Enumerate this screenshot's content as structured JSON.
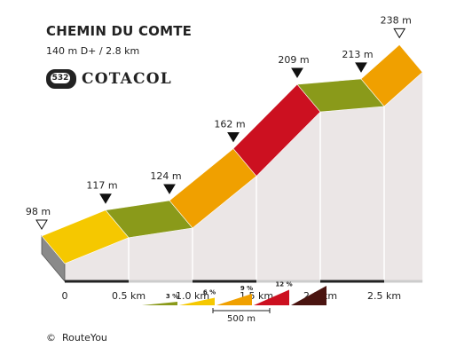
{
  "header": {
    "title": "CHEMIN DU COMTE",
    "subtitle": "140 m D+ / 2.8 km",
    "badge_number": "532",
    "brand": "COTACOL"
  },
  "footer": {
    "copyright_symbol": "©",
    "copyright_text": "RouteYou"
  },
  "chart_data": {
    "type": "area",
    "title": "CHEMIN DU COMTE",
    "subtitle": "140 m D+ / 2.8 km",
    "x_unit": "km",
    "y_unit": "m",
    "xlim": [
      0,
      2.8
    ],
    "ylim": [
      98,
      238
    ],
    "points": [
      {
        "km": 0.0,
        "elev": 98,
        "label": "98 m",
        "marker": "start"
      },
      {
        "km": 0.5,
        "elev": 117,
        "label": "117 m",
        "marker": "arrow"
      },
      {
        "km": 1.0,
        "elev": 124,
        "label": "124 m",
        "marker": "arrow"
      },
      {
        "km": 1.5,
        "elev": 162,
        "label": "162 m",
        "marker": "arrow"
      },
      {
        "km": 2.0,
        "elev": 209,
        "label": "209 m",
        "marker": "arrow"
      },
      {
        "km": 2.5,
        "elev": 213,
        "label": "213 m",
        "marker": "arrow"
      },
      {
        "km": 2.8,
        "elev": 238,
        "label": "238 m",
        "marker": "end"
      }
    ],
    "segment_colors": [
      "#f5c800",
      "#8a9a1a",
      "#f0a000",
      "#cc1020",
      "#8a9a1a",
      "#f0a000"
    ],
    "x_ticks": [
      {
        "value": 0,
        "label": "0"
      },
      {
        "value": 0.5,
        "label": "0.5 km"
      },
      {
        "value": 1.0,
        "label": "1.0 km"
      },
      {
        "value": 1.5,
        "label": "1.5 km"
      },
      {
        "value": 2.0,
        "label": "2.0 km"
      },
      {
        "value": 2.5,
        "label": "2.5 km"
      }
    ],
    "legend": {
      "items": [
        {
          "label": "3 %",
          "color": "#8a9a1a"
        },
        {
          "label": "6 %",
          "color": "#f5c800"
        },
        {
          "label": "9 %",
          "color": "#f0a000"
        },
        {
          "label": "12 %",
          "color": "#cc1020"
        },
        {
          "label": "",
          "color": "#4a1410"
        }
      ],
      "scale_label": "500 m"
    }
  }
}
